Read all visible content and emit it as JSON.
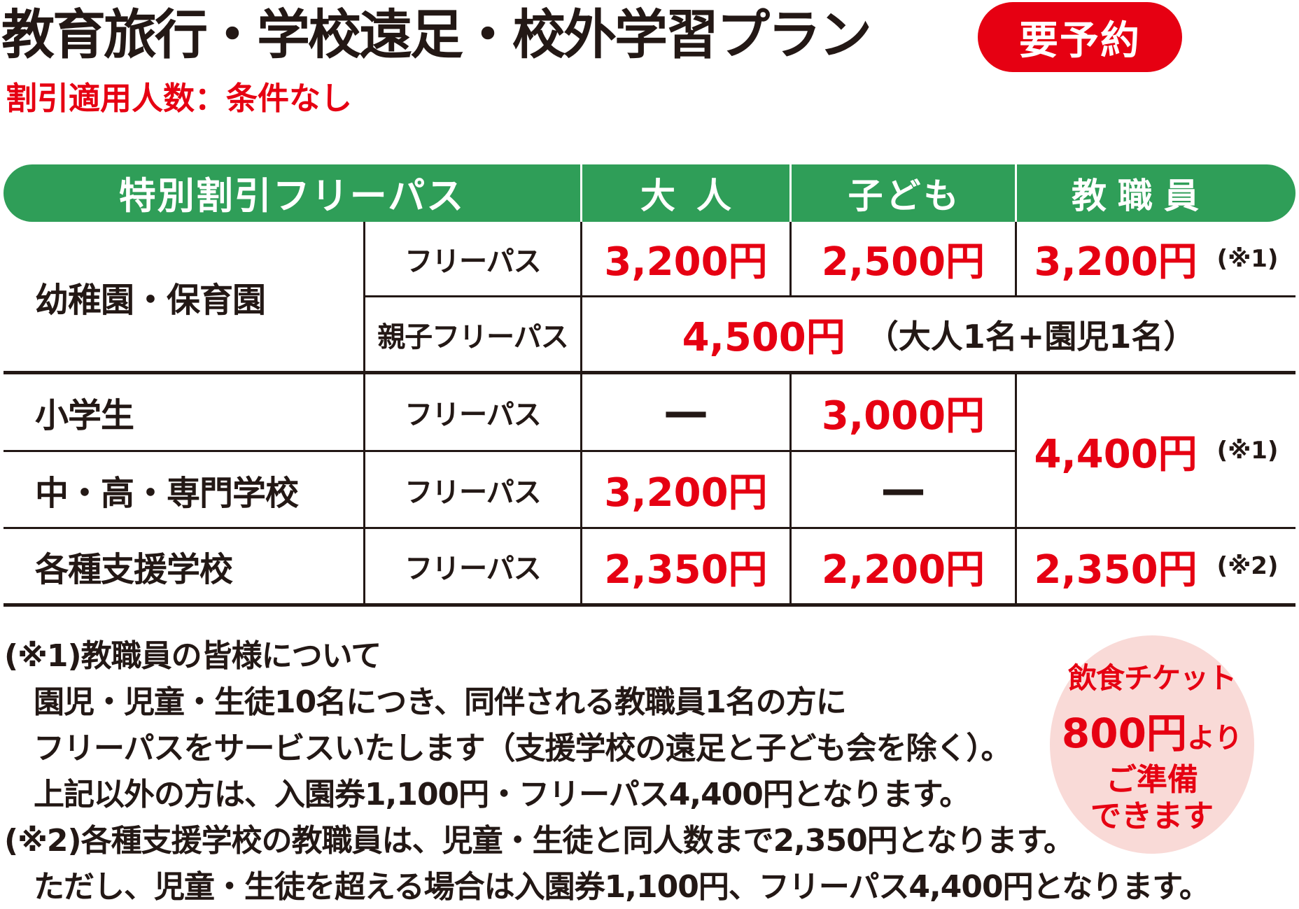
{
  "title": "教育旅行・学校遠足・校外学習プラン",
  "badge": "要予約",
  "subtitle": "割引適用人数：条件なし",
  "colors": {
    "green": "#2F9E58",
    "red": "#E60012",
    "pink": "#F9DAD7",
    "text_black": "#231815"
  },
  "table": {
    "headers": {
      "plan": "特別割引フリーパス",
      "adult": "大人",
      "child": "子ども",
      "staff": "教職員"
    },
    "kindergarten": {
      "group": "幼稚園・保育園",
      "pass": "フリーパス",
      "adult": "3,200円",
      "child": "2,500円",
      "staff": "3,200円",
      "staff_note": "(※1)",
      "family_pass": "親子フリーパス",
      "family_price": "4,500円",
      "family_note": "（大人1名+園児1名）"
    },
    "elementary": {
      "group": "小学生",
      "pass": "フリーパス",
      "adult": "—",
      "child": "3,000円"
    },
    "secondary": {
      "group": "中・高・専門学校",
      "pass": "フリーパス",
      "adult": "3,200円",
      "child": "—"
    },
    "staff_merged": {
      "price": "4,400円",
      "note": "(※1)"
    },
    "support": {
      "group": "各種支援学校",
      "pass": "フリーパス",
      "adult": "2,350円",
      "child": "2,200円",
      "staff": "2,350円",
      "staff_note": "(※2)"
    }
  },
  "notes": {
    "line1": "(※1)教職員の皆様について",
    "line2": "園児・児童・生徒10名につき、同伴される教職員1名の方に",
    "line3": "フリーパスをサービスいたします（支援学校の遠足と子ども会を除く）。",
    "line4": "上記以外の方は、入園券1,100円・フリーパス4,400円となります。",
    "line5": "(※2)各種支援学校の教職員は、児童・生徒と同人数まで2,350円となります。",
    "line6": "ただし、児童・生徒を超える場合は入園券1,100円、フリーパス4,400円となります。"
  },
  "food_ticket": {
    "line1": "飲食チケット",
    "price": "800円",
    "suffix": "より",
    "line3": "ご準備",
    "line4": "できます"
  }
}
